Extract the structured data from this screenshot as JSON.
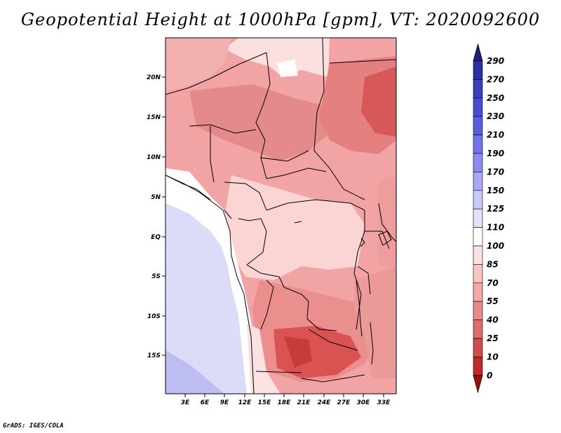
{
  "title": "Geopotential Height at 1000hPa [gpm], VT: 2020092600",
  "credit": "GrADS: IGES/COLA",
  "map": {
    "lat_ticks": [
      "20N",
      "15N",
      "10N",
      "5N",
      "EQ",
      "5S",
      "10S",
      "15S"
    ],
    "lon_ticks": [
      "3E",
      "6E",
      "9E",
      "12E",
      "15E",
      "18E",
      "21E",
      "24E",
      "27E",
      "30E",
      "33E"
    ]
  },
  "colorbar": {
    "labels": [
      "290",
      "270",
      "250",
      "230",
      "210",
      "190",
      "170",
      "150",
      "125",
      "110",
      "100",
      "85",
      "70",
      "55",
      "40",
      "25",
      "10",
      "0"
    ],
    "colors": [
      "#23238f",
      "#2d2da6",
      "#3c3cbd",
      "#4a4ad0",
      "#5c5ce0",
      "#7272ea",
      "#8c8cf2",
      "#a9a9f6",
      "#c9c9f9",
      "#e2e2fb",
      "#ffffff",
      "#fde0e0",
      "#f9c4c4",
      "#f3a9a9",
      "#ea8a8a",
      "#e06c6c",
      "#d24b4b",
      "#c02a2a",
      "#a81616"
    ],
    "top_arrow_color": "#1e1e7c",
    "bottom_arrow_color": "#9a1010"
  }
}
